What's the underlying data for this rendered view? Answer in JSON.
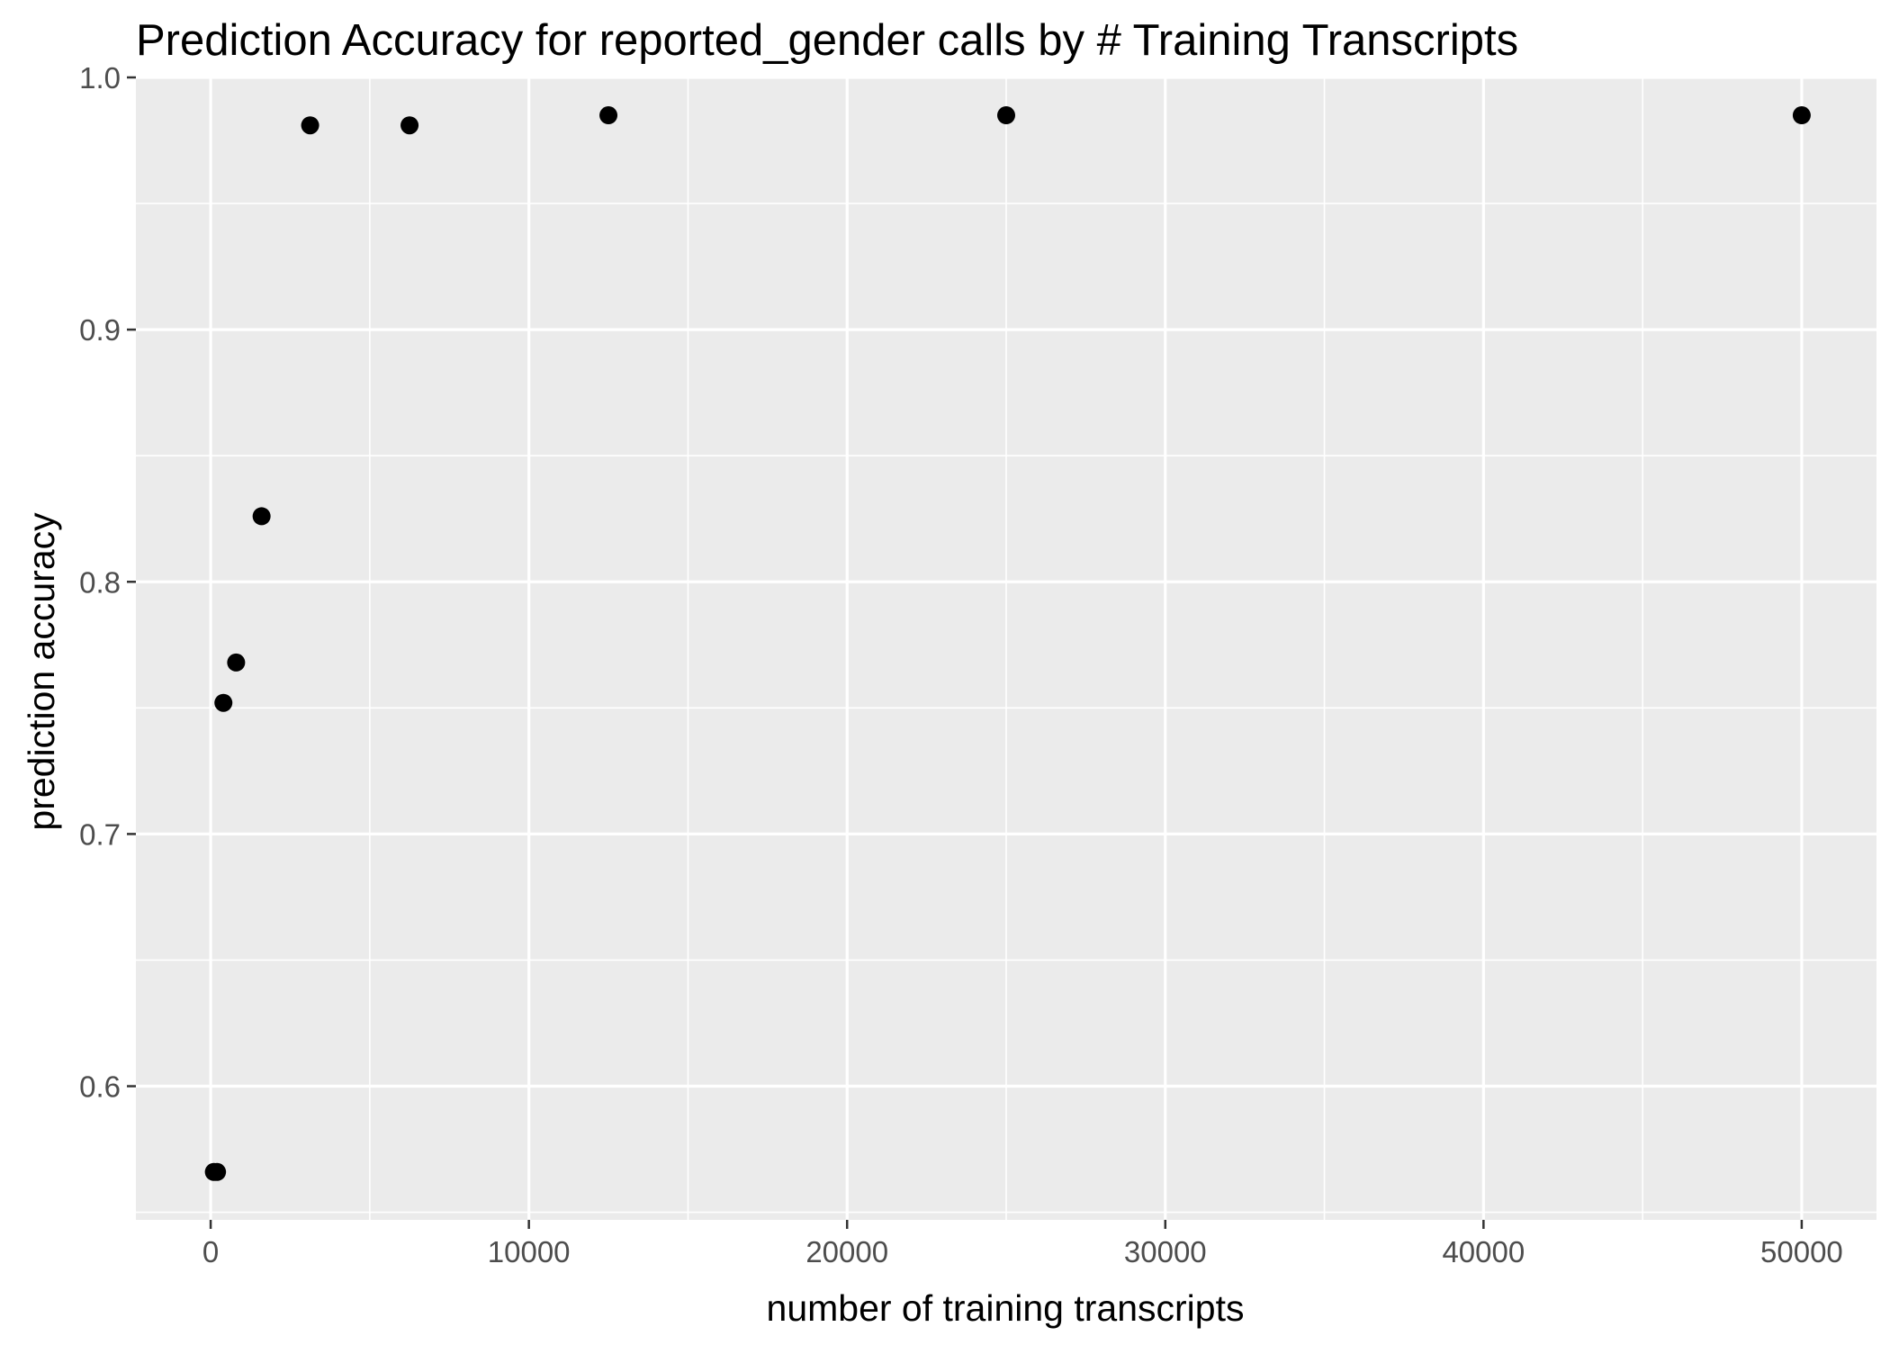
{
  "chart_data": {
    "type": "scatter",
    "title": "Prediction Accuracy for reported_gender calls by # Training Transcripts",
    "xlabel": "number of training transcripts",
    "ylabel": "prediction accuracy",
    "xlim": [
      -2350,
      52350
    ],
    "ylim": [
      0.547,
      1.0
    ],
    "x_ticks": [
      0,
      10000,
      20000,
      30000,
      40000,
      50000
    ],
    "x_tick_labels": [
      "0",
      "10000",
      "20000",
      "30000",
      "40000",
      "50000"
    ],
    "y_ticks": [
      0.6,
      0.7,
      0.8,
      0.9,
      1.0
    ],
    "y_tick_labels": [
      "0.6",
      "0.7",
      "0.8",
      "0.9",
      "1.0"
    ],
    "grid": true,
    "legend": "none",
    "background_color": "#ebebeb",
    "grid_color": "#ffffff",
    "point_color": "#000000",
    "points": [
      {
        "x": 100,
        "y": 0.566
      },
      {
        "x": 200,
        "y": 0.566
      },
      {
        "x": 400,
        "y": 0.752
      },
      {
        "x": 800,
        "y": 0.768
      },
      {
        "x": 1600,
        "y": 0.826
      },
      {
        "x": 3125,
        "y": 0.981
      },
      {
        "x": 6250,
        "y": 0.981
      },
      {
        "x": 12500,
        "y": 0.985
      },
      {
        "x": 25000,
        "y": 0.985
      },
      {
        "x": 50000,
        "y": 0.985
      }
    ]
  }
}
